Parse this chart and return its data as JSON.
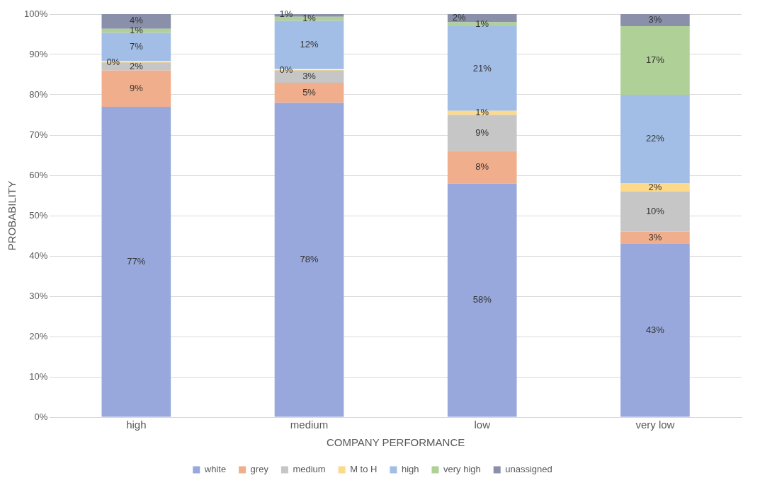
{
  "chart_data": {
    "type": "bar",
    "stacked": true,
    "xlabel": "COMPANY PERFORMANCE",
    "ylabel": "PROBABILITY",
    "categories": [
      "high",
      "medium",
      "low",
      "very low"
    ],
    "series": [
      {
        "name": "white",
        "color": "#98a8dc",
        "values": [
          77,
          78,
          58,
          43
        ],
        "value_labels": [
          "77%",
          "78%",
          "58%",
          "43%"
        ]
      },
      {
        "name": "grey",
        "color": "#f1ae8c",
        "values": [
          9,
          5,
          8,
          3
        ],
        "value_labels": [
          "9%",
          "5%",
          "8%",
          "3%"
        ]
      },
      {
        "name": "medium",
        "color": "#c6c6c6",
        "values": [
          2,
          3,
          9,
          10
        ],
        "value_labels": [
          "2%",
          "3%",
          "9%",
          "10%"
        ]
      },
      {
        "name": "M to H",
        "color": "#fdd98a",
        "values": [
          0,
          0,
          1,
          2
        ],
        "value_labels": [
          "0%",
          "0%",
          "1%",
          "2%"
        ]
      },
      {
        "name": "high",
        "color": "#a3bee6",
        "values": [
          7,
          12,
          21,
          22
        ],
        "value_labels": [
          "7%",
          "12%",
          "21%",
          "22%"
        ]
      },
      {
        "name": "very high",
        "color": "#afd096",
        "values": [
          1,
          1,
          1,
          17
        ],
        "value_labels": [
          "1%",
          "1%",
          "1%",
          "17%"
        ]
      },
      {
        "name": "unassigned",
        "color": "#8a90aa",
        "values": [
          4,
          1,
          2,
          3
        ],
        "value_labels": [
          "4%",
          "1%",
          "2%",
          "3%"
        ]
      }
    ],
    "ylim": [
      0,
      100
    ],
    "yticks": [
      {
        "value": 0,
        "label": "0%"
      },
      {
        "value": 10,
        "label": "10%"
      },
      {
        "value": 20,
        "label": "20%"
      },
      {
        "value": 30,
        "label": "30%"
      },
      {
        "value": 40,
        "label": "40%"
      },
      {
        "value": 50,
        "label": "50%"
      },
      {
        "value": 60,
        "label": "60%"
      },
      {
        "value": 70,
        "label": "70%"
      },
      {
        "value": 80,
        "label": "80%"
      },
      {
        "value": 90,
        "label": "90%"
      },
      {
        "value": 100,
        "label": "100%"
      }
    ],
    "grid": "y",
    "legend": "bottom"
  }
}
